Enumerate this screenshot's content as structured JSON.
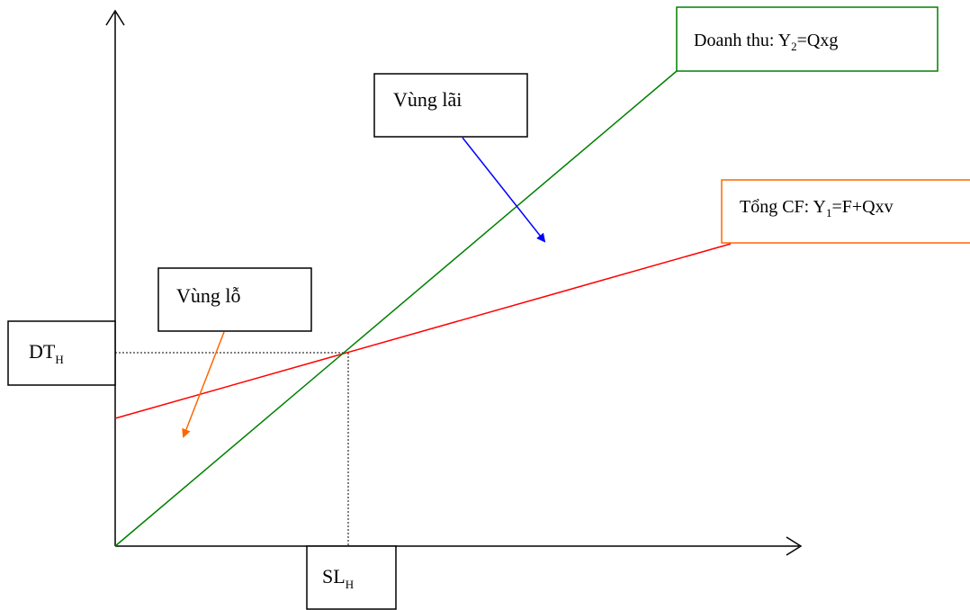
{
  "labels": {
    "revenue_line": {
      "prefix": "Doanh thu: Y",
      "sub": "2",
      "suffix": "=Qxg"
    },
    "profit_zone": "Vùng lãi",
    "total_cost_line": {
      "prefix": "Tổng CF: Y",
      "sub": "1",
      "suffix": "=F+Qxv"
    },
    "loss_zone": "Vùng lỗ",
    "breakeven_revenue": {
      "main": "DT",
      "sub": "H"
    },
    "breakeven_quantity": {
      "main": "SL",
      "sub": "H"
    }
  },
  "colors": {
    "revenue_line": "#008000",
    "total_cost_line": "#ff0000",
    "profit_arrow": "#0000ff",
    "loss_arrow": "#ff6600",
    "cost_label_border": "#ff6600",
    "revenue_label_border": "#008000",
    "axis": "#000000"
  }
}
